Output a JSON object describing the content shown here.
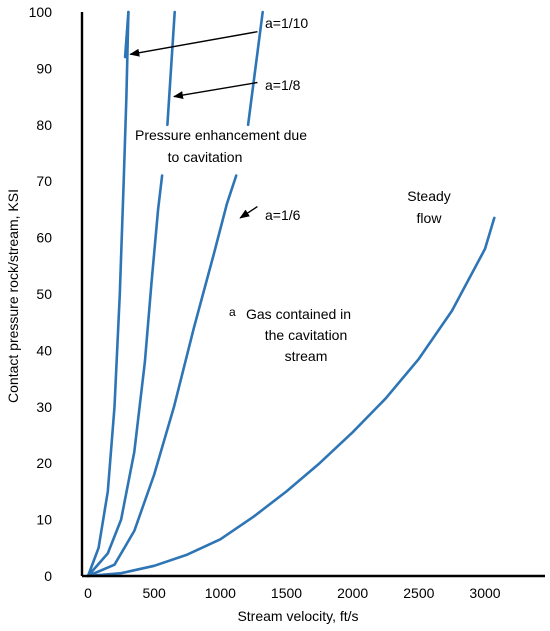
{
  "chart_data": {
    "type": "line",
    "xlabel": "Stream velocity, ft/s",
    "ylabel": "Contact pressure rock/stream, KSI",
    "xlim": [
      -50,
      3550
    ],
    "ylim": [
      0,
      100
    ],
    "x_ticks": [
      0,
      500,
      1000,
      1500,
      2000,
      2500,
      3000
    ],
    "y_ticks": [
      0,
      10,
      20,
      30,
      40,
      50,
      60,
      70,
      80,
      90,
      100
    ],
    "grid": false,
    "series": [
      {
        "name": "",
        "points": [
          [
            0,
            0
          ],
          [
            80,
            5
          ],
          [
            150,
            15
          ],
          [
            200,
            30
          ],
          [
            240,
            50
          ],
          [
            270,
            70
          ],
          [
            290,
            85
          ],
          [
            305,
            100
          ]
        ]
      },
      {
        "name": "",
        "points": [
          [
            0,
            0
          ],
          [
            150,
            4
          ],
          [
            250,
            10
          ],
          [
            350,
            22
          ],
          [
            430,
            38
          ],
          [
            480,
            52
          ],
          [
            530,
            65
          ],
          [
            560,
            71
          ]
        ]
      },
      {
        "name": "",
        "points": [
          [
            0,
            0
          ],
          [
            200,
            2
          ],
          [
            350,
            8
          ],
          [
            500,
            18
          ],
          [
            650,
            30
          ],
          [
            800,
            44
          ],
          [
            950,
            57
          ],
          [
            1050,
            66
          ],
          [
            1120,
            71
          ]
        ]
      },
      {
        "name": "Steady flow",
        "points": [
          [
            0,
            0
          ],
          [
            250,
            0.5
          ],
          [
            500,
            1.8
          ],
          [
            750,
            3.8
          ],
          [
            1000,
            6.5
          ],
          [
            1250,
            10.5
          ],
          [
            1500,
            15
          ],
          [
            1750,
            20
          ],
          [
            2000,
            25.5
          ],
          [
            2250,
            31.5
          ],
          [
            2500,
            38.5
          ],
          [
            2750,
            47
          ],
          [
            3000,
            58
          ],
          [
            3070,
            63.5
          ]
        ]
      },
      {
        "name": "",
        "points": [
          [
            305,
            100
          ],
          [
            280,
            92
          ]
        ]
      },
      {
        "name": "",
        "points": [
          [
            655,
            100
          ],
          [
            600,
            80
          ]
        ]
      },
      {
        "name": "",
        "points": [
          [
            1320,
            100
          ],
          [
            1210,
            80
          ]
        ]
      }
    ],
    "annotations": [
      {
        "text": "a=1/10",
        "arrow_to": [
          320,
          92.5
        ],
        "from": [
          1280,
          96.5
        ]
      },
      {
        "text": "a=1/8",
        "arrow_to": [
          650,
          85
        ],
        "from": [
          1280,
          87.5
        ]
      },
      {
        "text": "a=1/6",
        "arrow_to": [
          1150,
          63.5
        ],
        "from": [
          1280,
          65.5
        ]
      },
      {
        "text": "Pressure enhancement due",
        "line": 1
      },
      {
        "text": "to cavitation",
        "line": 2
      },
      {
        "text": "Steady",
        "line": 1
      },
      {
        "text": "flow",
        "line": 2
      },
      {
        "text": "a",
        "line": 0
      },
      {
        "text": "Gas contained in",
        "line": 1
      },
      {
        "text": "the cavitation",
        "line": 2
      },
      {
        "text": "stream",
        "line": 3
      }
    ]
  }
}
